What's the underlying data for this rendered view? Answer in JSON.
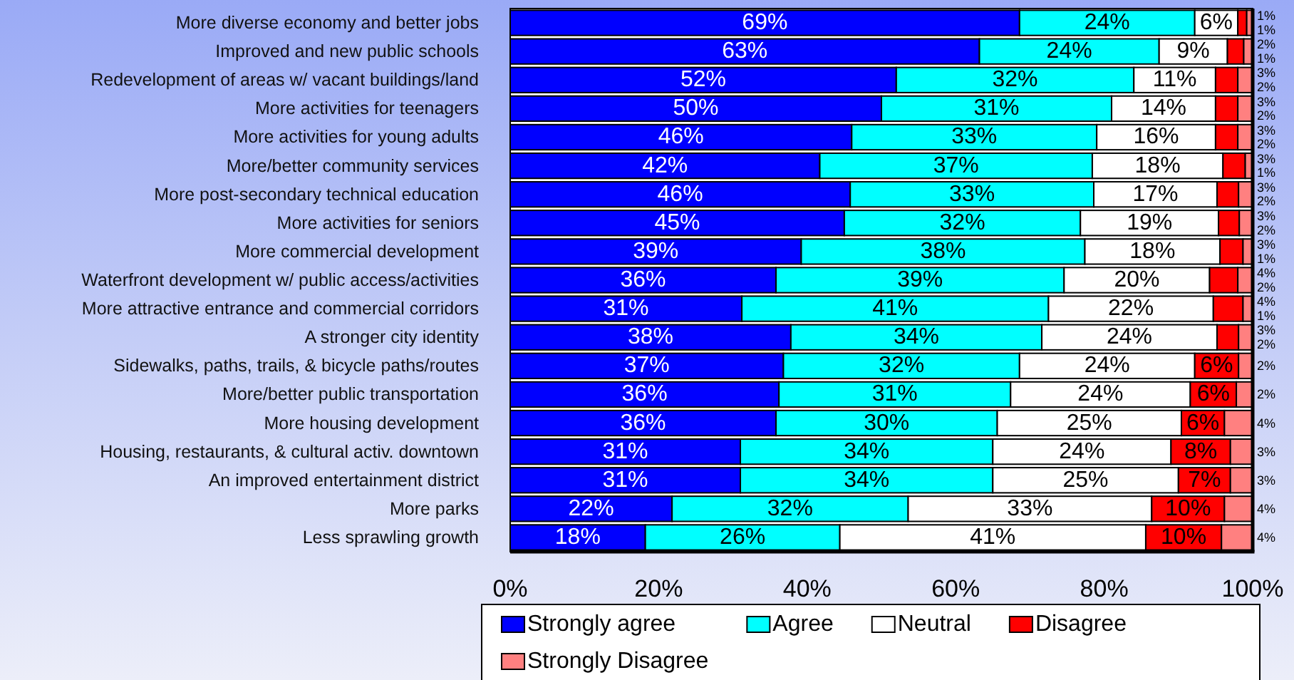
{
  "chart_data": {
    "type": "bar",
    "orientation": "horizontal",
    "stacked": true,
    "categories": [
      "More diverse economy and better jobs",
      "Improved and new public schools",
      "Redevelopment of areas w/ vacant buildings/land",
      "More activities for teenagers",
      "More activities for young adults",
      "More/better community services",
      "More post-secondary technical education",
      "More activities for seniors",
      "More commercial development",
      "Waterfront development w/ public access/activities",
      "More attractive entrance and commercial corridors",
      "A stronger city identity",
      "Sidewalks, paths, trails, & bicycle paths/routes",
      "More/better public transportation",
      "More housing development",
      "Housing, restaurants, & cultural activ. downtown",
      "An improved entertainment district",
      "More parks",
      "Less sprawling growth"
    ],
    "series": [
      {
        "name": "Strongly agree",
        "color": "#0000ff",
        "values": [
          68.6,
          63.2,
          52,
          50,
          46,
          41.7,
          45.8,
          45,
          39.2,
          35.8,
          31.2,
          37.8,
          36.8,
          36.2,
          35.8,
          31,
          31,
          21.8,
          18.2
        ],
        "value_labels": [
          "69%",
          "63%",
          "52%",
          "50%",
          "46%",
          "42%",
          "46%",
          "45%",
          "39%",
          "36%",
          "31%",
          "38%",
          "37%",
          "36%",
          "36%",
          "31%",
          "31%",
          "22%",
          "18%"
        ]
      },
      {
        "name": "Agree",
        "color": "#00ffff",
        "values": [
          23.6,
          24.2,
          32,
          31,
          33,
          36.7,
          32.8,
          31.8,
          38.2,
          38.8,
          41.3,
          33.8,
          31.8,
          31.2,
          29.8,
          34,
          34,
          31.8,
          26.2
        ],
        "value_labels": [
          "24%",
          "24%",
          "32%",
          "31%",
          "33%",
          "37%",
          "33%",
          "32%",
          "38%",
          "39%",
          "41%",
          "34%",
          "32%",
          "31%",
          "30%",
          "34%",
          "34%",
          "32%",
          "26%"
        ]
      },
      {
        "name": "Neutral",
        "color": "#ffffff",
        "values": [
          5.8,
          9.2,
          11,
          14,
          16,
          17.6,
          16.6,
          18.6,
          18.2,
          19.6,
          22.2,
          23.6,
          23.6,
          24.2,
          24.8,
          24,
          25,
          32.8,
          41.2
        ],
        "value_labels": [
          "6%",
          "9%",
          "11%",
          "14%",
          "16%",
          "18%",
          "17%",
          "19%",
          "18%",
          "20%",
          "22%",
          "24%",
          "24%",
          "24%",
          "25%",
          "24%",
          "25%",
          "33%",
          "41%"
        ]
      },
      {
        "name": "Disagree",
        "color": "#ff0000",
        "values": [
          1.2,
          2.2,
          3,
          3,
          3,
          3,
          2.9,
          2.8,
          3.1,
          3.8,
          4,
          2.9,
          5.9,
          6.2,
          5.8,
          8,
          7,
          9.8,
          10.2
        ],
        "value_labels": [
          "1%",
          "2%",
          "3%",
          "3%",
          "3%",
          "3%",
          "3%",
          "3%",
          "3%",
          "4%",
          "4%",
          "3%",
          "6%",
          "6%",
          "6%",
          "8%",
          "7%",
          "10%",
          "10%"
        ]
      },
      {
        "name": "Strongly Disagree",
        "color": "#ff8080",
        "values": [
          0.8,
          1.2,
          2,
          2,
          2,
          1,
          1.9,
          1.8,
          1.3,
          2,
          1.3,
          1.9,
          1.9,
          2.2,
          3.8,
          3,
          3,
          3.8,
          4.2
        ],
        "value_labels": [
          "1%",
          "1%",
          "2%",
          "2%",
          "2%",
          "1%",
          "2%",
          "2%",
          "1%",
          "2%",
          "1%",
          "2%",
          "2%",
          "2%",
          "4%",
          "3%",
          "3%",
          "4%",
          "4%"
        ]
      }
    ],
    "xlim": [
      0,
      100
    ],
    "xticks": [
      {
        "value": 0,
        "label": "0%"
      },
      {
        "value": 20,
        "label": "20%"
      },
      {
        "value": 40,
        "label": "40%"
      },
      {
        "value": 60,
        "label": "60%"
      },
      {
        "value": 80,
        "label": "80%"
      },
      {
        "value": 100,
        "label": "100%"
      }
    ],
    "legend": "bottom"
  }
}
